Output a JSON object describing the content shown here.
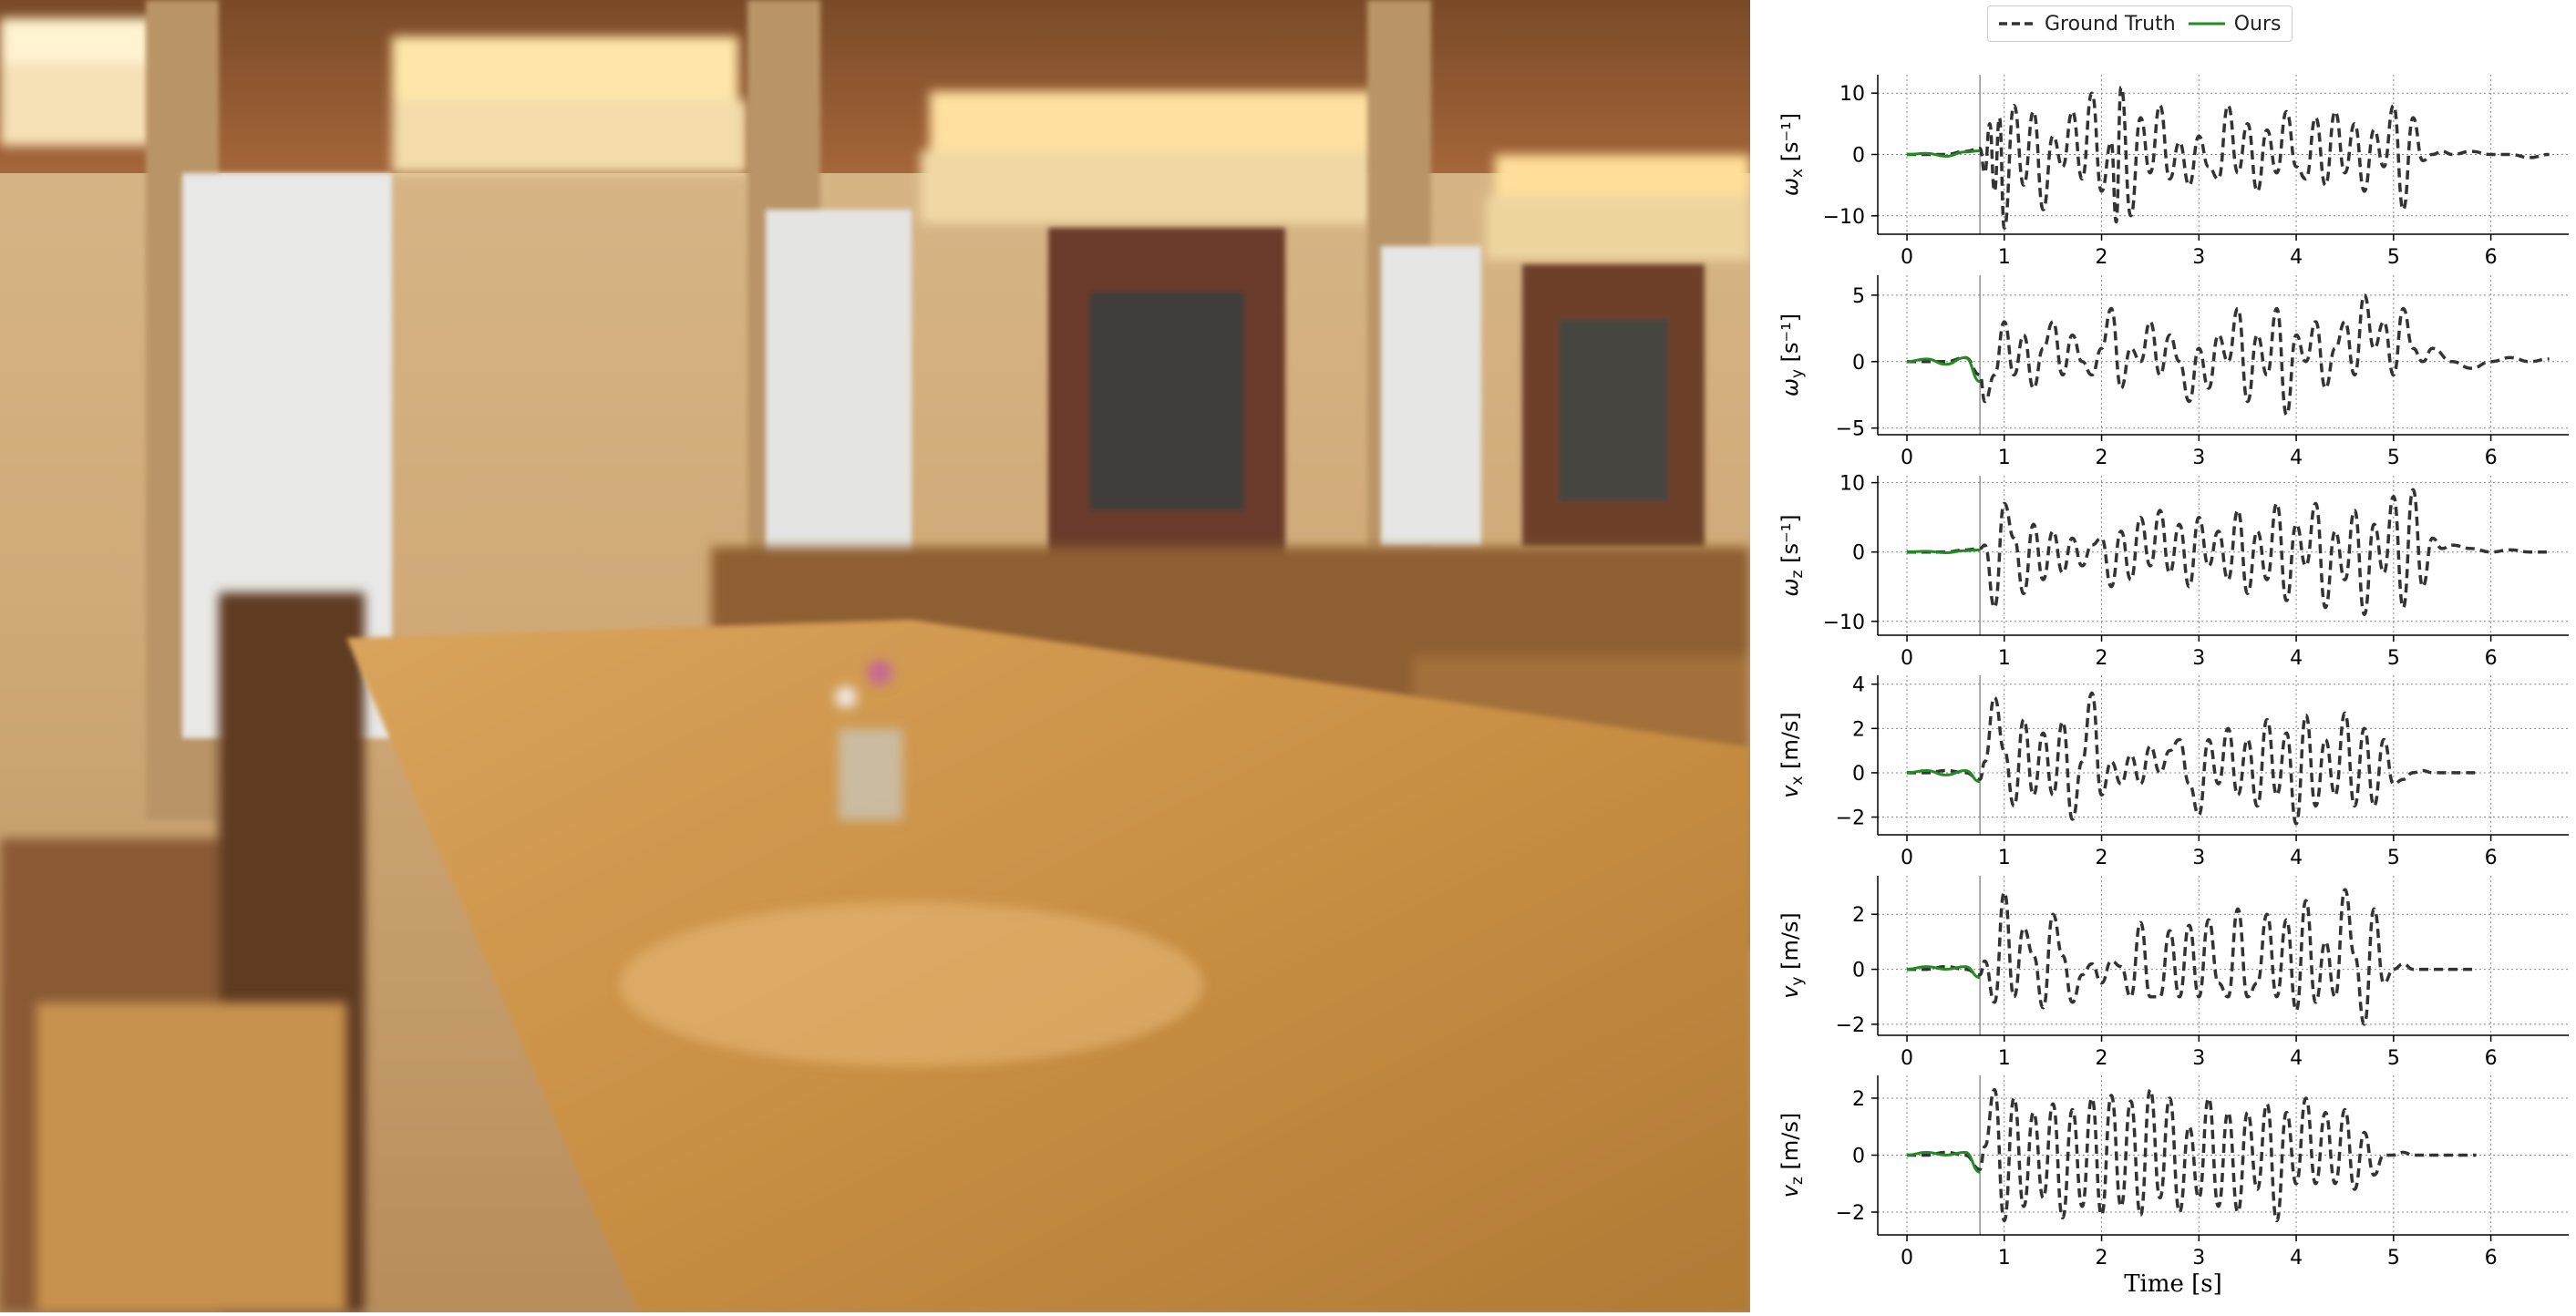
{
  "legend": {
    "gt_label": "Ground Truth",
    "ours_label": "Ours",
    "gt_color": "#333333",
    "ours_color": "#228B22"
  },
  "scene": {
    "type": "photo",
    "subject": "blurred-dining-hall"
  },
  "chart_data": [
    {
      "type": "line",
      "ylabel": "ω_x [s⁻¹]",
      "ylim": [
        -13,
        13
      ],
      "yticks": [
        -10,
        0,
        10
      ],
      "xlim": [
        -0.3,
        6.8
      ],
      "xticks": [
        0,
        1,
        2,
        3,
        4,
        5,
        6
      ],
      "vline": 0.75,
      "grid": true,
      "gt_end": 6.6,
      "series": [
        {
          "name": "Ground Truth",
          "x": [
            0,
            0.2,
            0.4,
            0.6,
            0.75,
            0.8,
            0.85,
            0.9,
            0.95,
            1.0,
            1.1,
            1.2,
            1.3,
            1.4,
            1.5,
            1.6,
            1.7,
            1.8,
            1.9,
            2.0,
            2.1,
            2.15,
            2.2,
            2.3,
            2.4,
            2.5,
            2.6,
            2.7,
            2.8,
            2.9,
            3.0,
            3.1,
            3.2,
            3.3,
            3.4,
            3.5,
            3.6,
            3.7,
            3.8,
            3.9,
            4.0,
            4.1,
            4.2,
            4.3,
            4.4,
            4.5,
            4.6,
            4.7,
            4.8,
            4.9,
            5.0,
            5.1,
            5.2,
            5.3,
            5.4,
            5.5,
            5.6,
            5.8,
            6.0,
            6.2,
            6.4,
            6.6
          ],
          "y": [
            0,
            0,
            0,
            0.5,
            1,
            -3,
            5,
            -6,
            6,
            -12,
            8,
            -5,
            7,
            -9,
            3,
            -2,
            7,
            -4,
            10,
            -6,
            2,
            -11,
            11,
            -10,
            6,
            -3,
            8,
            -4,
            2,
            -5,
            3,
            -2,
            -4,
            8,
            -3,
            5,
            -6,
            4,
            -3,
            7,
            -2,
            -4,
            6,
            -5,
            7,
            -3,
            5,
            -6,
            4,
            -2,
            8,
            -9,
            6,
            -1,
            0,
            0.5,
            0,
            0.5,
            0,
            0,
            -0.5,
            0
          ]
        },
        {
          "name": "Ours",
          "x": [
            0,
            0.2,
            0.4,
            0.6,
            0.75
          ],
          "y": [
            0,
            0.2,
            -0.3,
            0.4,
            0.6
          ]
        }
      ]
    },
    {
      "type": "line",
      "ylabel": "ω_y [s⁻¹]",
      "ylim": [
        -5.5,
        6.5
      ],
      "yticks": [
        -5,
        0,
        5
      ],
      "xlim": [
        -0.3,
        6.8
      ],
      "xticks": [
        0,
        1,
        2,
        3,
        4,
        5,
        6
      ],
      "vline": 0.75,
      "grid": true,
      "gt_end": 6.6,
      "series": [
        {
          "name": "Ground Truth",
          "x": [
            0,
            0.2,
            0.4,
            0.6,
            0.75,
            0.8,
            0.9,
            1.0,
            1.1,
            1.2,
            1.3,
            1.4,
            1.5,
            1.6,
            1.7,
            1.8,
            1.9,
            2.0,
            2.1,
            2.2,
            2.3,
            2.4,
            2.5,
            2.6,
            2.7,
            2.8,
            2.9,
            3.0,
            3.1,
            3.2,
            3.3,
            3.4,
            3.5,
            3.6,
            3.7,
            3.8,
            3.9,
            4.0,
            4.1,
            4.2,
            4.3,
            4.4,
            4.5,
            4.6,
            4.7,
            4.8,
            4.9,
            5.0,
            5.1,
            5.2,
            5.3,
            5.4,
            5.6,
            5.8,
            6.0,
            6.2,
            6.4,
            6.6
          ],
          "y": [
            0,
            0,
            0,
            0.3,
            -1,
            -3,
            -1,
            3,
            -1,
            2,
            -2,
            1,
            3,
            -1,
            2,
            0,
            -1,
            1,
            4,
            -2,
            1,
            0,
            3,
            -1,
            2,
            0,
            -3,
            1,
            -2,
            2,
            0,
            4,
            -3,
            2,
            -1,
            4,
            -4,
            2,
            0,
            3,
            -2,
            1,
            3,
            -1,
            5,
            1,
            3,
            -1,
            4,
            1,
            0,
            1,
            0,
            -0.5,
            0,
            0.3,
            0,
            0.2
          ]
        },
        {
          "name": "Ours",
          "x": [
            0,
            0.2,
            0.4,
            0.6,
            0.75
          ],
          "y": [
            0,
            0.2,
            -0.2,
            0.3,
            -1.5
          ]
        }
      ]
    },
    {
      "type": "line",
      "ylabel": "ω_z [s⁻¹]",
      "ylim": [
        -12,
        11
      ],
      "yticks": [
        -10,
        0,
        10
      ],
      "xlim": [
        -0.3,
        6.8
      ],
      "xticks": [
        0,
        1,
        2,
        3,
        4,
        5,
        6
      ],
      "vline": 0.75,
      "grid": true,
      "gt_end": 6.6,
      "series": [
        {
          "name": "Ground Truth",
          "x": [
            0,
            0.2,
            0.4,
            0.6,
            0.75,
            0.8,
            0.9,
            1.0,
            1.1,
            1.2,
            1.3,
            1.4,
            1.5,
            1.6,
            1.7,
            1.8,
            1.9,
            2.0,
            2.1,
            2.2,
            2.3,
            2.4,
            2.5,
            2.6,
            2.7,
            2.8,
            2.9,
            3.0,
            3.1,
            3.2,
            3.3,
            3.4,
            3.5,
            3.6,
            3.7,
            3.8,
            3.9,
            4.0,
            4.1,
            4.2,
            4.3,
            4.4,
            4.5,
            4.6,
            4.7,
            4.8,
            4.9,
            5.0,
            5.1,
            5.2,
            5.3,
            5.4,
            5.5,
            5.6,
            5.8,
            6.0,
            6.2,
            6.4,
            6.6
          ],
          "y": [
            0,
            0,
            0,
            0.3,
            0.5,
            1,
            -8,
            7,
            2,
            -6,
            4,
            -4,
            3,
            -3,
            2,
            -2,
            1,
            2,
            -5,
            3,
            -4,
            5,
            -2,
            6,
            -3,
            4,
            -5,
            5,
            -2,
            3,
            -4,
            6,
            -6,
            3,
            -4,
            7,
            -7,
            4,
            -2,
            7,
            -8,
            3,
            -4,
            6,
            -9,
            4,
            -3,
            8,
            -8,
            9,
            -5,
            2,
            0.5,
            1,
            0.5,
            0,
            0.3,
            0,
            0
          ]
        },
        {
          "name": "Ours",
          "x": [
            0,
            0.2,
            0.4,
            0.6,
            0.75
          ],
          "y": [
            0,
            0.1,
            -0.1,
            0.2,
            0.3
          ]
        }
      ]
    },
    {
      "type": "line",
      "ylabel": "v_x [m/s]",
      "ylim": [
        -2.8,
        4.4
      ],
      "yticks": [
        -2,
        0,
        2,
        4
      ],
      "xlim": [
        -0.3,
        6.8
      ],
      "xticks": [
        0,
        1,
        2,
        3,
        4,
        5,
        6
      ],
      "vline": 0.75,
      "grid": true,
      "gt_end": 5.85,
      "series": [
        {
          "name": "Ground Truth",
          "x": [
            0,
            0.2,
            0.4,
            0.6,
            0.75,
            0.8,
            0.9,
            1.0,
            1.1,
            1.2,
            1.3,
            1.4,
            1.5,
            1.6,
            1.7,
            1.8,
            1.9,
            2.0,
            2.1,
            2.2,
            2.3,
            2.4,
            2.5,
            2.6,
            2.7,
            2.8,
            2.9,
            3.0,
            3.1,
            3.2,
            3.3,
            3.4,
            3.5,
            3.6,
            3.7,
            3.8,
            3.9,
            4.0,
            4.1,
            4.2,
            4.3,
            4.4,
            4.5,
            4.6,
            4.7,
            4.8,
            4.9,
            5.0,
            5.1,
            5.2,
            5.3,
            5.4,
            5.5,
            5.6,
            5.7,
            5.85
          ],
          "y": [
            0,
            0,
            0.1,
            0,
            -0.3,
            0.5,
            3.4,
            1,
            -1.5,
            2.4,
            -1,
            1.8,
            -1,
            2.3,
            -2.1,
            0.5,
            3.6,
            -1,
            0.5,
            -0.5,
            0.8,
            -0.5,
            1.2,
            0,
            1,
            1.5,
            -0.5,
            -1.9,
            1.5,
            -0.5,
            2,
            -1,
            1.5,
            -1.5,
            2.4,
            -1,
            1.8,
            -2.3,
            2.6,
            -1.5,
            1.5,
            -1,
            2.7,
            -1.5,
            2,
            -1.5,
            1.5,
            -0.5,
            -0.3,
            0,
            0.1,
            0,
            0,
            0,
            0,
            0
          ]
        },
        {
          "name": "Ours",
          "x": [
            0,
            0.2,
            0.4,
            0.6,
            0.75
          ],
          "y": [
            0,
            0.1,
            -0.1,
            0.1,
            -0.4
          ]
        }
      ]
    },
    {
      "type": "line",
      "ylabel": "v_y [m/s]",
      "ylim": [
        -2.4,
        3.4
      ],
      "yticks": [
        -2,
        0,
        2
      ],
      "xlim": [
        -0.3,
        6.8
      ],
      "xticks": [
        0,
        1,
        2,
        3,
        4,
        5,
        6
      ],
      "vline": 0.75,
      "grid": true,
      "gt_end": 5.85,
      "series": [
        {
          "name": "Ground Truth",
          "x": [
            0,
            0.2,
            0.4,
            0.6,
            0.75,
            0.8,
            0.9,
            1.0,
            1.1,
            1.2,
            1.3,
            1.4,
            1.5,
            1.6,
            1.7,
            1.8,
            1.9,
            2.0,
            2.1,
            2.2,
            2.3,
            2.4,
            2.5,
            2.6,
            2.7,
            2.8,
            2.9,
            3.0,
            3.1,
            3.2,
            3.3,
            3.4,
            3.5,
            3.6,
            3.7,
            3.8,
            3.9,
            4.0,
            4.1,
            4.2,
            4.3,
            4.4,
            4.5,
            4.6,
            4.7,
            4.8,
            4.9,
            5.0,
            5.1,
            5.2,
            5.3,
            5.4,
            5.5,
            5.6,
            5.7,
            5.85
          ],
          "y": [
            0,
            0,
            0.1,
            0,
            -0.2,
            0.3,
            -1.2,
            2.8,
            -1,
            1.5,
            0.5,
            -1.4,
            2,
            0.5,
            -1.2,
            -0.2,
            0.2,
            -0.5,
            0.3,
            0.1,
            -1,
            1.7,
            -1,
            -1,
            1.4,
            -1,
            1.6,
            -1,
            1.8,
            -0.5,
            -1,
            2.2,
            -1,
            -0.5,
            2,
            -1,
            1.8,
            -1.5,
            2.5,
            -1.2,
            1,
            -1,
            2.9,
            0.5,
            -2,
            2.2,
            -0.5,
            0,
            0.2,
            0,
            0,
            0,
            0,
            0,
            0,
            0
          ]
        },
        {
          "name": "Ours",
          "x": [
            0,
            0.2,
            0.4,
            0.6,
            0.75
          ],
          "y": [
            0,
            0.1,
            0,
            0.1,
            -0.3
          ]
        }
      ]
    },
    {
      "type": "line",
      "ylabel": "v_z [m/s]",
      "ylim": [
        -2.8,
        2.8
      ],
      "yticks": [
        -2,
        0,
        2
      ],
      "xlim": [
        -0.3,
        6.8
      ],
      "xticks": [
        0,
        1,
        2,
        3,
        4,
        5,
        6
      ],
      "vline": 0.75,
      "grid": true,
      "xlabel": "Time [s]",
      "gt_end": 5.85,
      "series": [
        {
          "name": "Ground Truth",
          "x": [
            0,
            0.2,
            0.4,
            0.6,
            0.75,
            0.8,
            0.9,
            1.0,
            1.1,
            1.2,
            1.3,
            1.4,
            1.5,
            1.6,
            1.7,
            1.8,
            1.9,
            2.0,
            2.1,
            2.2,
            2.3,
            2.4,
            2.5,
            2.6,
            2.7,
            2.8,
            2.9,
            3.0,
            3.1,
            3.2,
            3.3,
            3.4,
            3.5,
            3.6,
            3.7,
            3.8,
            3.9,
            4.0,
            4.1,
            4.2,
            4.3,
            4.4,
            4.5,
            4.6,
            4.7,
            4.8,
            4.9,
            5.0,
            5.1,
            5.2,
            5.3,
            5.4,
            5.5,
            5.6,
            5.7,
            5.85
          ],
          "y": [
            0,
            0,
            0.1,
            0,
            -0.5,
            0.3,
            2.3,
            -2.3,
            2,
            -1.8,
            1.5,
            -1.5,
            1.8,
            -2.2,
            1.6,
            -1.8,
            2,
            -2.1,
            2.1,
            -1.8,
            1.9,
            -2.1,
            2.3,
            -1.5,
            2,
            -2,
            1,
            -1.5,
            2,
            -1.8,
            1.5,
            -2,
            1.5,
            -1.2,
            1.8,
            -2.3,
            1.5,
            -1,
            2,
            -1,
            1.5,
            -1,
            1.6,
            -1.2,
            0.8,
            -0.7,
            0,
            0,
            0.1,
            0,
            0,
            0,
            0,
            0,
            0,
            0
          ]
        },
        {
          "name": "Ours",
          "x": [
            0,
            0.2,
            0.4,
            0.6,
            0.75
          ],
          "y": [
            0,
            0.1,
            0,
            0.1,
            -0.6
          ]
        }
      ]
    }
  ]
}
